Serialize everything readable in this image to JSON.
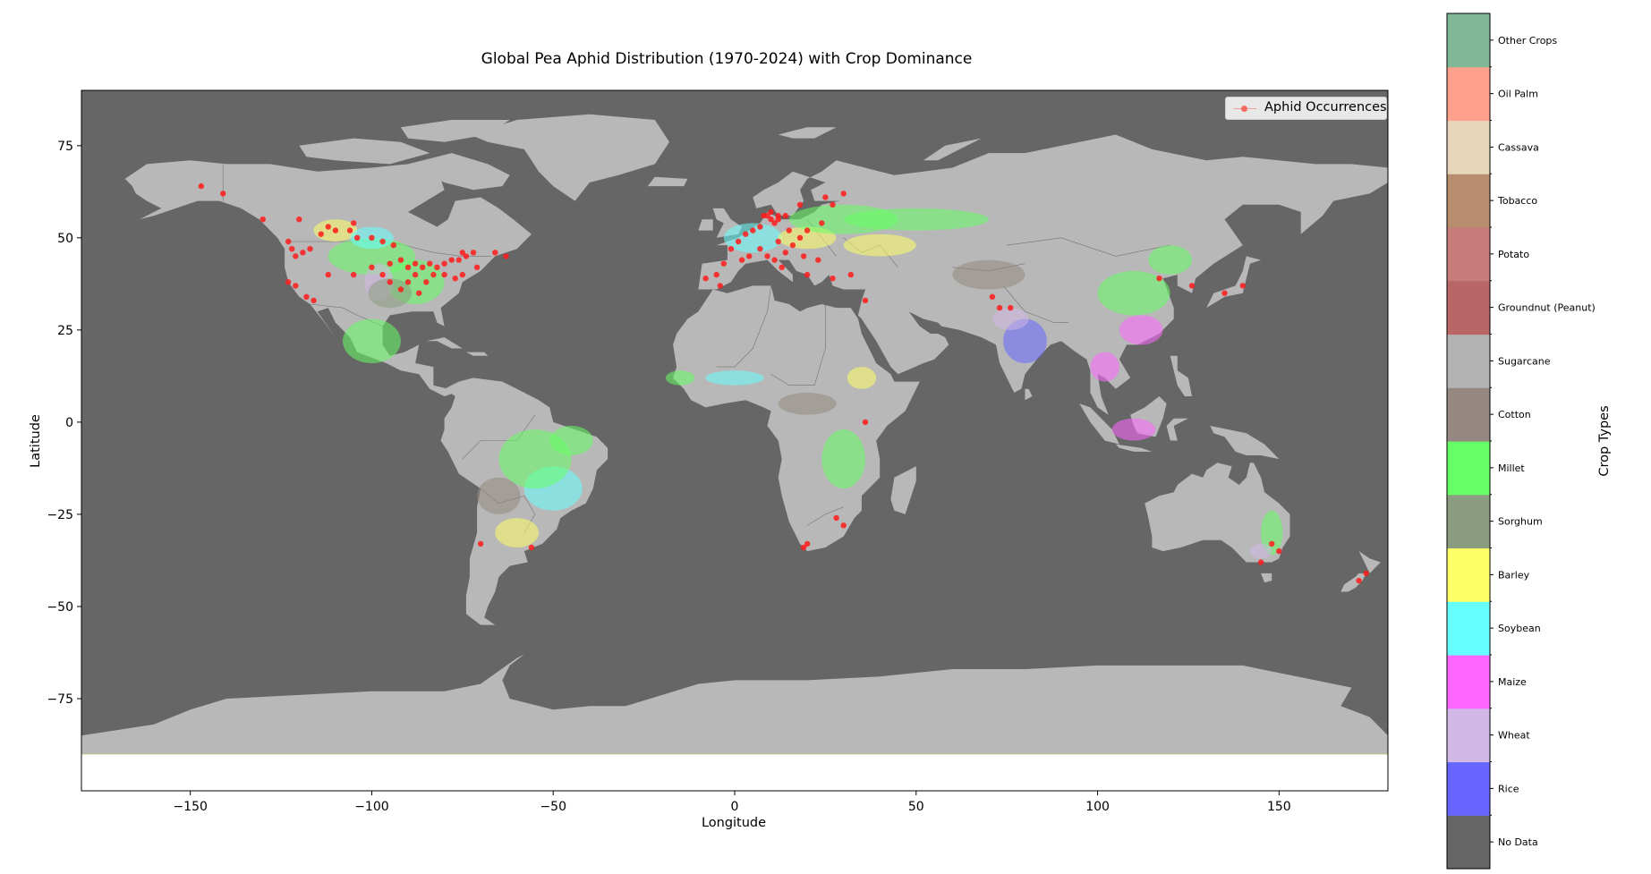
{
  "chart_data": {
    "type": "map",
    "title": "Global Pea Aphid Distribution (1970-2024) with Crop Dominance",
    "xlabel": "Longitude",
    "ylabel": "Latitude",
    "xlim": [
      -180,
      180
    ],
    "ylim": [
      -100,
      90
    ],
    "xticks": [
      -150,
      -100,
      -50,
      0,
      50,
      100,
      150
    ],
    "xtick_labels": [
      "−150",
      "−100",
      "−50",
      "0",
      "50",
      "100",
      "150"
    ],
    "yticks": [
      75,
      50,
      25,
      0,
      -25,
      -50,
      -75
    ],
    "ytick_labels": [
      "75",
      "50",
      "25",
      "0",
      "−25",
      "−50",
      "−75"
    ],
    "background_color": "#666666",
    "land_color": "#b8b8b8",
    "legend": {
      "label": "Aphid Occurrences",
      "location": "upper right",
      "marker_color": "#f46a5e"
    },
    "colorbar": {
      "label": "Crop Types",
      "categories": [
        {
          "name": "No Data",
          "color": "#666666"
        },
        {
          "name": "Rice",
          "color": "#6666ff"
        },
        {
          "name": "Wheat",
          "color": "#d2b8e6"
        },
        {
          "name": "Maize",
          "color": "#ff66ff"
        },
        {
          "name": "Soybean",
          "color": "#66ffff"
        },
        {
          "name": "Barley",
          "color": "#ffff66"
        },
        {
          "name": "Sorghum",
          "color": "#8c9c80"
        },
        {
          "name": "Millet",
          "color": "#66ff66"
        },
        {
          "name": "Cotton",
          "color": "#948880"
        },
        {
          "name": "Sugarcane",
          "color": "#b2b2b2"
        },
        {
          "name": "Groundnut (Peanut)",
          "color": "#b86666"
        },
        {
          "name": "Potato",
          "color": "#c87b7b"
        },
        {
          "name": "Tobacco",
          "color": "#b88c6e"
        },
        {
          "name": "Cassava",
          "color": "#e6d5bb"
        },
        {
          "name": "Oil Palm",
          "color": "#ffa08c"
        },
        {
          "name": "Other Crops",
          "color": "#80b897"
        }
      ]
    },
    "aphid_occurrences": [
      [
        -123,
        49
      ],
      [
        -122,
        47
      ],
      [
        -121,
        45
      ],
      [
        -119,
        46
      ],
      [
        -117,
        47
      ],
      [
        -114,
        51
      ],
      [
        -112,
        53
      ],
      [
        -110,
        52
      ],
      [
        -106,
        52
      ],
      [
        -104,
        50
      ],
      [
        -100,
        50
      ],
      [
        -97,
        49
      ],
      [
        -94,
        48
      ],
      [
        -123,
        38
      ],
      [
        -121,
        37
      ],
      [
        -118,
        34
      ],
      [
        -116,
        33
      ],
      [
        -112,
        40
      ],
      [
        -105,
        40
      ],
      [
        -100,
        42
      ],
      [
        -97,
        40
      ],
      [
        -95,
        38
      ],
      [
        -92,
        44
      ],
      [
        -90,
        42
      ],
      [
        -88,
        43
      ],
      [
        -86,
        42
      ],
      [
        -84,
        43
      ],
      [
        -82,
        42
      ],
      [
        -80,
        43
      ],
      [
        -78,
        44
      ],
      [
        -76,
        44
      ],
      [
        -74,
        45
      ],
      [
        -72,
        46
      ],
      [
        -71,
        42
      ],
      [
        -75,
        40
      ],
      [
        -77,
        39
      ],
      [
        -80,
        40
      ],
      [
        -83,
        40
      ],
      [
        -85,
        38
      ],
      [
        -88,
        40
      ],
      [
        -90,
        38
      ],
      [
        -92,
        36
      ],
      [
        -87,
        35
      ],
      [
        -95,
        43
      ],
      [
        -63,
        45
      ],
      [
        -66,
        46
      ],
      [
        -147,
        64
      ],
      [
        -141,
        62
      ],
      [
        -130,
        55
      ],
      [
        -120,
        55
      ],
      [
        -105,
        54
      ],
      [
        -75,
        46
      ],
      [
        -5,
        40
      ],
      [
        -3,
        43
      ],
      [
        -1,
        47
      ],
      [
        1,
        49
      ],
      [
        3,
        51
      ],
      [
        5,
        52
      ],
      [
        7,
        53
      ],
      [
        9,
        56
      ],
      [
        10,
        55
      ],
      [
        12,
        55
      ],
      [
        14,
        56
      ],
      [
        10,
        57
      ],
      [
        12,
        56
      ],
      [
        8,
        56
      ],
      [
        11,
        54
      ],
      [
        15,
        52
      ],
      [
        18,
        50
      ],
      [
        20,
        52
      ],
      [
        24,
        54
      ],
      [
        27,
        59
      ],
      [
        25,
        61
      ],
      [
        30,
        62
      ],
      [
        18,
        59
      ],
      [
        12,
        49
      ],
      [
        16,
        48
      ],
      [
        14,
        46
      ],
      [
        19,
        45
      ],
      [
        23,
        44
      ],
      [
        9,
        45
      ],
      [
        11,
        44
      ],
      [
        13,
        42
      ],
      [
        7,
        47
      ],
      [
        4,
        45
      ],
      [
        2,
        44
      ],
      [
        -4,
        37
      ],
      [
        -8,
        39
      ],
      [
        20,
        40
      ],
      [
        27,
        39
      ],
      [
        32,
        40
      ],
      [
        36,
        33
      ],
      [
        71,
        34
      ],
      [
        73,
        31
      ],
      [
        76,
        31
      ],
      [
        117,
        39
      ],
      [
        126,
        37
      ],
      [
        135,
        35
      ],
      [
        140,
        37
      ],
      [
        36,
        0
      ],
      [
        28,
        -26
      ],
      [
        30,
        -28
      ],
      [
        19,
        -34
      ],
      [
        20,
        -33
      ],
      [
        148,
        -33
      ],
      [
        150,
        -35
      ],
      [
        145,
        -38
      ],
      [
        172,
        -43
      ],
      [
        174,
        -41
      ],
      [
        -56,
        -34
      ],
      [
        -70,
        -33
      ]
    ]
  }
}
